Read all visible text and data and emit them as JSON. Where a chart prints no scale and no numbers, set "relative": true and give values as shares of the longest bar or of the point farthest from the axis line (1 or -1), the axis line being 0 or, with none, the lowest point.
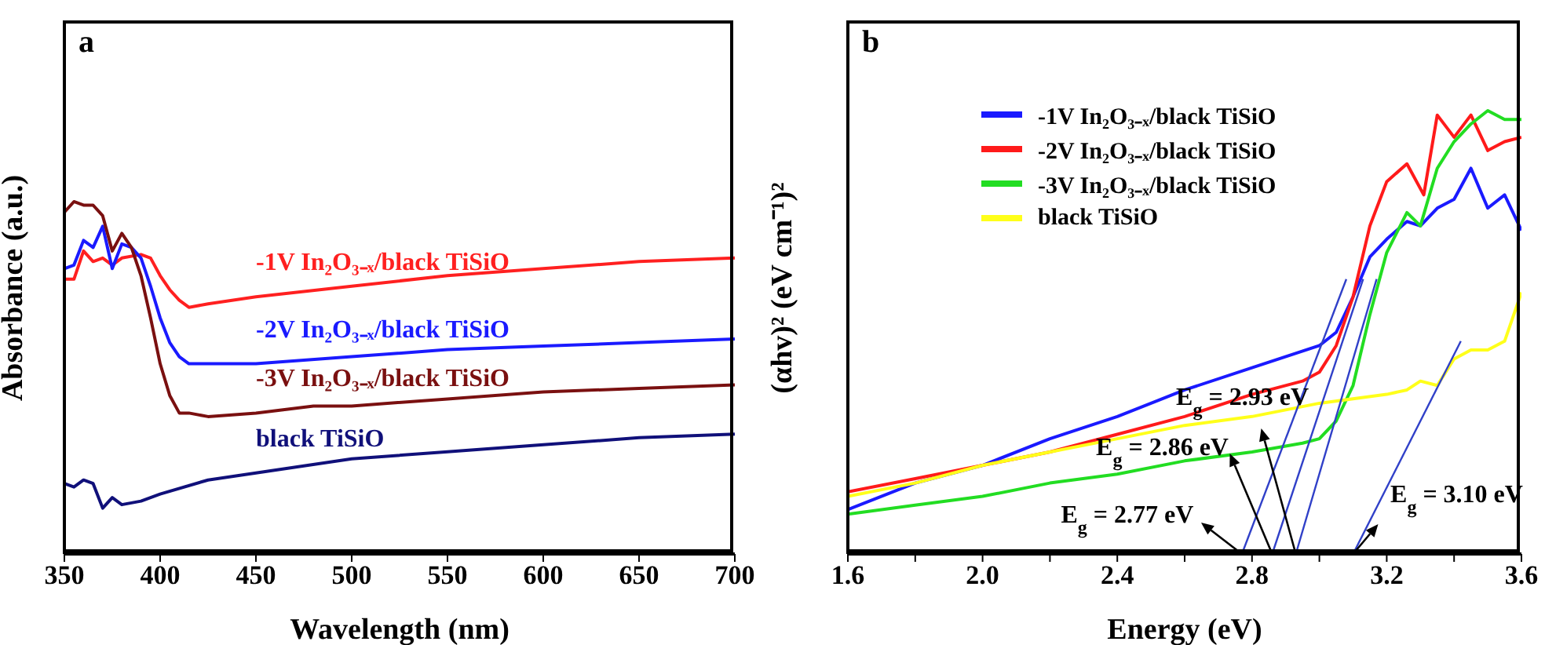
{
  "chart_data": [
    {
      "type": "line",
      "title": "a",
      "xlabel": "Wavelength (nm)",
      "ylabel": "Absorbance (a.u.)",
      "relative": true,
      "legend": false,
      "grid": false,
      "xlim": [
        350,
        700
      ],
      "xticks": [
        350,
        400,
        450,
        500,
        550,
        600,
        650,
        700
      ],
      "series": [
        {
          "name": "-1V In₂O₃₋ₓ/black TiSiO",
          "color": "#ff2020",
          "x": [
            350,
            355,
            360,
            365,
            370,
            375,
            380,
            390,
            395,
            400,
            405,
            410,
            415,
            425,
            450,
            500,
            550,
            600,
            650,
            700
          ],
          "values": [
            0.78,
            0.78,
            0.86,
            0.83,
            0.84,
            0.82,
            0.84,
            0.85,
            0.84,
            0.79,
            0.75,
            0.72,
            0.7,
            0.71,
            0.73,
            0.76,
            0.79,
            0.81,
            0.83,
            0.84
          ]
        },
        {
          "name": "-2V In₂O₃₋ₓ/black TiSiO",
          "color": "#1a1aff",
          "x": [
            350,
            355,
            360,
            365,
            370,
            375,
            380,
            385,
            390,
            395,
            400,
            405,
            410,
            415,
            425,
            450,
            500,
            550,
            600,
            650,
            700
          ],
          "values": [
            0.81,
            0.82,
            0.89,
            0.87,
            0.93,
            0.81,
            0.88,
            0.87,
            0.84,
            0.76,
            0.67,
            0.6,
            0.56,
            0.54,
            0.54,
            0.54,
            0.56,
            0.58,
            0.59,
            0.6,
            0.61
          ]
        },
        {
          "name": "-3V In₂O₃₋ₓ/black TiSiO",
          "color": "#7a1010",
          "x": [
            350,
            355,
            360,
            365,
            370,
            375,
            380,
            385,
            390,
            395,
            400,
            405,
            410,
            415,
            425,
            450,
            480,
            500,
            550,
            600,
            650,
            700
          ],
          "values": [
            0.97,
            1,
            0.99,
            0.99,
            0.96,
            0.86,
            0.91,
            0.87,
            0.79,
            0.67,
            0.54,
            0.45,
            0.4,
            0.4,
            0.39,
            0.4,
            0.42,
            0.42,
            0.44,
            0.46,
            0.47,
            0.48
          ]
        },
        {
          "name": "black TiSiO",
          "color": "#10107a",
          "x": [
            350,
            355,
            360,
            365,
            370,
            375,
            380,
            390,
            400,
            425,
            450,
            475,
            500,
            550,
            600,
            650,
            700
          ],
          "values": [
            0.2,
            0.19,
            0.21,
            0.2,
            0.13,
            0.16,
            0.14,
            0.15,
            0.17,
            0.21,
            0.23,
            0.25,
            0.27,
            0.29,
            0.31,
            0.33,
            0.34
          ]
        }
      ]
    },
    {
      "type": "line",
      "title": "b",
      "xlabel": "Energy (eV)",
      "ylabel": "(αhv)² (eV cm⁻¹)²",
      "relative": true,
      "legend": "top",
      "grid": false,
      "xlim": [
        1.6,
        3.6
      ],
      "xticks": [
        1.6,
        {
          "value": 1.8,
          "label": null
        },
        {
          "value": 2.0,
          "label": "2.0"
        },
        {
          "value": 2.2,
          "label": null
        },
        2.4,
        {
          "value": 2.6,
          "label": null
        },
        2.8,
        {
          "value": 3.0,
          "label": null
        },
        3.2,
        {
          "value": 3.4,
          "label": null
        },
        3.6
      ],
      "series": [
        {
          "name": "-1V In₂O₃₋ₓ/black TiSiO",
          "color": "#1a1aff",
          "x": [
            1.6,
            1.8,
            2.0,
            2.2,
            2.4,
            2.6,
            2.8,
            3.0,
            3.05,
            3.1,
            3.15,
            3.2,
            3.26,
            3.3,
            3.35,
            3.4,
            3.45,
            3.5,
            3.55,
            3.6
          ],
          "values": [
            0.1,
            0.16,
            0.2,
            0.26,
            0.31,
            0.37,
            0.42,
            0.47,
            0.5,
            0.58,
            0.67,
            0.71,
            0.75,
            0.74,
            0.78,
            0.8,
            0.87,
            0.78,
            0.81,
            0.73
          ]
        },
        {
          "name": "-2V In₂O₃₋ₓ/black TiSiO",
          "color": "#ff1a1a",
          "x": [
            1.6,
            1.8,
            2.0,
            2.2,
            2.4,
            2.6,
            2.8,
            2.95,
            3.0,
            3.05,
            3.1,
            3.15,
            3.2,
            3.26,
            3.31,
            3.35,
            3.4,
            3.45,
            3.5,
            3.55,
            3.6
          ],
          "values": [
            0.14,
            0.17,
            0.2,
            0.23,
            0.27,
            0.31,
            0.36,
            0.39,
            0.41,
            0.47,
            0.58,
            0.74,
            0.84,
            0.88,
            0.81,
            0.99,
            0.94,
            0.99,
            0.91,
            0.93,
            0.94
          ]
        },
        {
          "name": "-3V In₂O₃₋ₓ/black TiSiO",
          "color": "#22dd22",
          "x": [
            1.6,
            1.8,
            2.0,
            2.2,
            2.4,
            2.6,
            2.8,
            2.95,
            3.0,
            3.05,
            3.1,
            3.15,
            3.2,
            3.26,
            3.3,
            3.35,
            3.4,
            3.45,
            3.5,
            3.55,
            3.6
          ],
          "values": [
            0.09,
            0.11,
            0.13,
            0.16,
            0.18,
            0.21,
            0.23,
            0.25,
            0.26,
            0.3,
            0.38,
            0.54,
            0.68,
            0.77,
            0.74,
            0.87,
            0.93,
            0.97,
            1,
            0.98,
            0.98
          ]
        },
        {
          "name": "black TiSiO",
          "color": "#ffff1a",
          "x": [
            1.6,
            1.8,
            2.0,
            2.2,
            2.4,
            2.6,
            2.8,
            3.0,
            3.2,
            3.26,
            3.3,
            3.35,
            3.4,
            3.45,
            3.5,
            3.55,
            3.6
          ],
          "values": [
            0.13,
            0.16,
            0.2,
            0.23,
            0.26,
            0.29,
            0.31,
            0.34,
            0.36,
            0.37,
            0.39,
            0.38,
            0.44,
            0.46,
            0.46,
            0.48,
            0.59
          ]
        },
        {
          "type": "line",
          "color": "#3040c8",
          "x": [
            2.77,
            3.08
          ],
          "values": [
            0,
            0.62
          ]
        },
        {
          "type": "line",
          "color": "#3040c8",
          "x": [
            2.86,
            3.13
          ],
          "values": [
            0,
            0.62
          ]
        },
        {
          "type": "line",
          "color": "#3040c8",
          "x": [
            2.93,
            3.17
          ],
          "values": [
            0,
            0.62
          ]
        },
        {
          "type": "line",
          "color": "#3040c8",
          "x": [
            3.1,
            3.42
          ],
          "values": [
            0,
            0.48
          ]
        }
      ],
      "annotations": [
        {
          "text": "E$_{g}$ = 2.77 eV",
          "x": 2.77,
          "y": 0
        },
        {
          "text": "E$_{g}$ = 2.86 eV",
          "x": 2.86,
          "y": 0
        },
        {
          "text": "E$_{g}$ = 2.93 eV",
          "x": 2.93,
          "y": 0
        },
        {
          "text": "E$_{g}$ = 3.10 eV",
          "x": 3.1,
          "y": 0
        }
      ]
    }
  ]
}
